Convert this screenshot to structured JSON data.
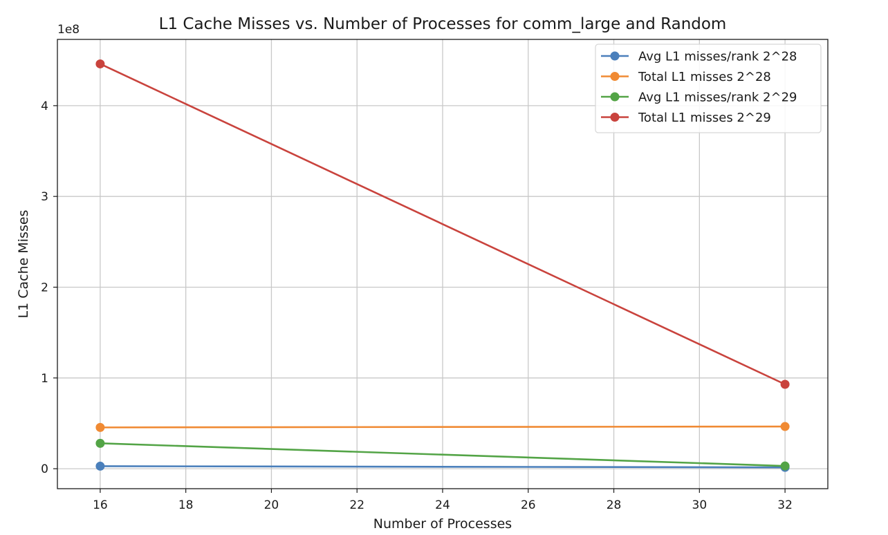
{
  "chart_data": {
    "type": "line",
    "title": "L1 Cache Misses vs. Number of Processes for comm_large and Random",
    "xlabel": "Number of Processes",
    "ylabel": "L1 Cache Misses",
    "y_offset_label": "1e8",
    "x": [
      16,
      32
    ],
    "xlim": [
      15,
      33
    ],
    "ylim": [
      -0.22,
      4.73
    ],
    "y_scale_factor": 100000000,
    "x_ticks": [
      16,
      18,
      20,
      22,
      24,
      26,
      28,
      30,
      32
    ],
    "y_ticks": [
      0,
      1,
      2,
      3,
      4
    ],
    "grid": true,
    "legend_position": "top-right",
    "series": [
      {
        "name": "Avg L1 misses/rank 2^28",
        "color": "#4a7fbb",
        "values": [
          0.028,
          0.015
        ]
      },
      {
        "name": "Total L1 misses 2^28",
        "color": "#f08a33",
        "values": [
          0.455,
          0.465
        ]
      },
      {
        "name": "Avg L1 misses/rank 2^29",
        "color": "#53a446",
        "values": [
          0.28,
          0.03
        ]
      },
      {
        "name": "Total L1 misses 2^29",
        "color": "#c9433d",
        "values": [
          4.46,
          0.93
        ]
      }
    ]
  }
}
